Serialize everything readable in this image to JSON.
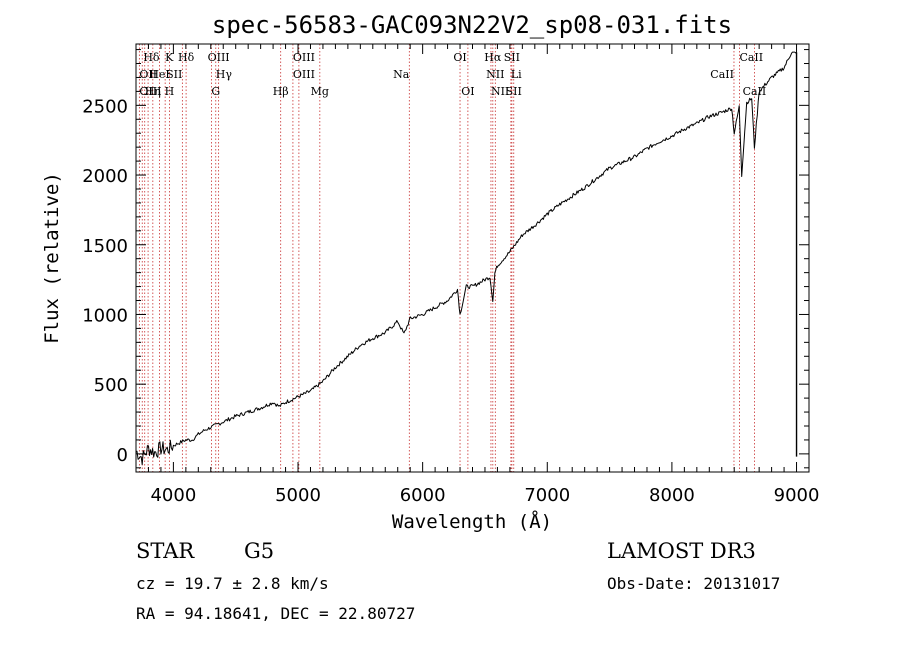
{
  "chart_data": {
    "type": "line",
    "title": "spec-56583-GAC093N22V2_sp08-031.fits",
    "xlabel": "Wavelength (Å)",
    "ylabel": "Flux (relative)",
    "xlim": [
      3700,
      9100
    ],
    "ylim": [
      -130,
      2940
    ],
    "x_ticks": [
      4000,
      5000,
      6000,
      7000,
      8000,
      9000
    ],
    "x_tick_labels": [
      "4000",
      "5000",
      "6000",
      "7000",
      "8000",
      "9000"
    ],
    "y_ticks": [
      0,
      500,
      1000,
      1500,
      2000,
      2500
    ],
    "y_tick_labels": [
      "0",
      "500",
      "1000",
      "1500",
      "2000",
      "2500"
    ],
    "series": [
      {
        "name": "flux",
        "x": [
          3700,
          3750,
          3800,
          3850,
          3900,
          3950,
          4000,
          4050,
          4100,
          4150,
          4200,
          4250,
          4300,
          4350,
          4400,
          4450,
          4500,
          4600,
          4700,
          4800,
          4850,
          4900,
          5000,
          5100,
          5200,
          5300,
          5400,
          5500,
          5600,
          5700,
          5800,
          5850,
          5900,
          6000,
          6100,
          6200,
          6280,
          6300,
          6350,
          6400,
          6500,
          6540,
          6563,
          6580,
          6600,
          6700,
          6800,
          6900,
          7000,
          7100,
          7200,
          7300,
          7400,
          7500,
          7600,
          7700,
          7800,
          7900,
          8000,
          8100,
          8200,
          8300,
          8400,
          8480,
          8500,
          8540,
          8560,
          8600,
          8640,
          8662,
          8700,
          8800,
          8900,
          8960,
          9000
        ],
        "y": [
          20,
          -30,
          40,
          10,
          40,
          30,
          60,
          80,
          100,
          100,
          140,
          170,
          190,
          210,
          230,
          250,
          270,
          300,
          330,
          370,
          340,
          370,
          410,
          450,
          520,
          620,
          700,
          780,
          830,
          870,
          950,
          860,
          970,
          1000,
          1050,
          1100,
          1180,
          1000,
          1200,
          1200,
          1250,
          1270,
          1100,
          1300,
          1350,
          1450,
          1570,
          1640,
          1720,
          1790,
          1850,
          1910,
          1980,
          2050,
          2090,
          2130,
          2190,
          2240,
          2280,
          2330,
          2370,
          2420,
          2450,
          2480,
          2300,
          2490,
          2000,
          2520,
          2550,
          2200,
          2600,
          2700,
          2770,
          2880,
          2870
        ]
      }
    ],
    "spectral_lines": [
      {
        "label": "Hδ",
        "x": 3889,
        "row": 0,
        "align": "end"
      },
      {
        "label": "K",
        "x": 3934,
        "row": 0,
        "align": "start"
      },
      {
        "label": "Hδ",
        "x": 4102,
        "row": 0,
        "align": "middle"
      },
      {
        "label": "OIII",
        "x": 4363,
        "row": 0,
        "align": "middle"
      },
      {
        "label": "OIII",
        "x": 4959,
        "row": 0,
        "align": "start"
      },
      {
        "label": "OI",
        "x": 6300,
        "row": 0,
        "align": "middle"
      },
      {
        "label": "Hα",
        "x": 6563,
        "row": 0,
        "align": "middle"
      },
      {
        "label": "SII",
        "x": 6716,
        "row": 0,
        "align": "middle"
      },
      {
        "label": "CaII",
        "x": 8542,
        "row": 0,
        "align": "start"
      },
      {
        "label": "OII",
        "x": 3727,
        "row": 1,
        "align": "start"
      },
      {
        "label": "HeI",
        "x": 3889,
        "row": 1,
        "align": "middle"
      },
      {
        "label": "SII",
        "x": 4072,
        "row": 1,
        "align": "end"
      },
      {
        "label": "Hγ",
        "x": 4340,
        "row": 1,
        "align": "start"
      },
      {
        "label": "OIII",
        "x": 4959,
        "row": 1,
        "align": "start"
      },
      {
        "label": "Na",
        "x": 5893,
        "row": 1,
        "align": "end"
      },
      {
        "label": "NII",
        "x": 6583,
        "row": 1,
        "align": "middle"
      },
      {
        "label": "Li",
        "x": 6708,
        "row": 1,
        "align": "start"
      },
      {
        "label": "CaII",
        "x": 8498,
        "row": 1,
        "align": "end"
      },
      {
        "label": "OIII",
        "x": 3727,
        "row": 2,
        "align": "start"
      },
      {
        "label": "Hη",
        "x": 3835,
        "row": 2,
        "align": "middle"
      },
      {
        "label": "H",
        "x": 3968,
        "row": 2,
        "align": "middle"
      },
      {
        "label": "G",
        "x": 4305,
        "row": 2,
        "align": "start"
      },
      {
        "label": "Hβ",
        "x": 4861,
        "row": 2,
        "align": "middle"
      },
      {
        "label": "Mg",
        "x": 5175,
        "row": 2,
        "align": "middle"
      },
      {
        "label": "OI",
        "x": 6363,
        "row": 2,
        "align": "middle"
      },
      {
        "label": "NII",
        "x": 6548,
        "row": 2,
        "align": "start"
      },
      {
        "label": "SII",
        "x": 6731,
        "row": 2,
        "align": "middle"
      },
      {
        "label": "CaII",
        "x": 8662,
        "row": 2,
        "align": "middle"
      }
    ],
    "line_positions": [
      3727,
      3750,
      3770,
      3797,
      3835,
      3889,
      3934,
      3968,
      4072,
      4102,
      4305,
      4340,
      4363,
      4861,
      4959,
      5007,
      5175,
      5893,
      6300,
      6363,
      6548,
      6563,
      6583,
      6708,
      6716,
      6731,
      8498,
      8542,
      8662
    ]
  },
  "info": {
    "object_class": "STAR",
    "subclass": "G5",
    "survey": "LAMOST DR3",
    "redshift": "cz = 19.7 ± 2.8 km/s",
    "obs_date": "Obs-Date: 20131017",
    "coords": "RA =  94.18641, DEC =  22.80727"
  }
}
